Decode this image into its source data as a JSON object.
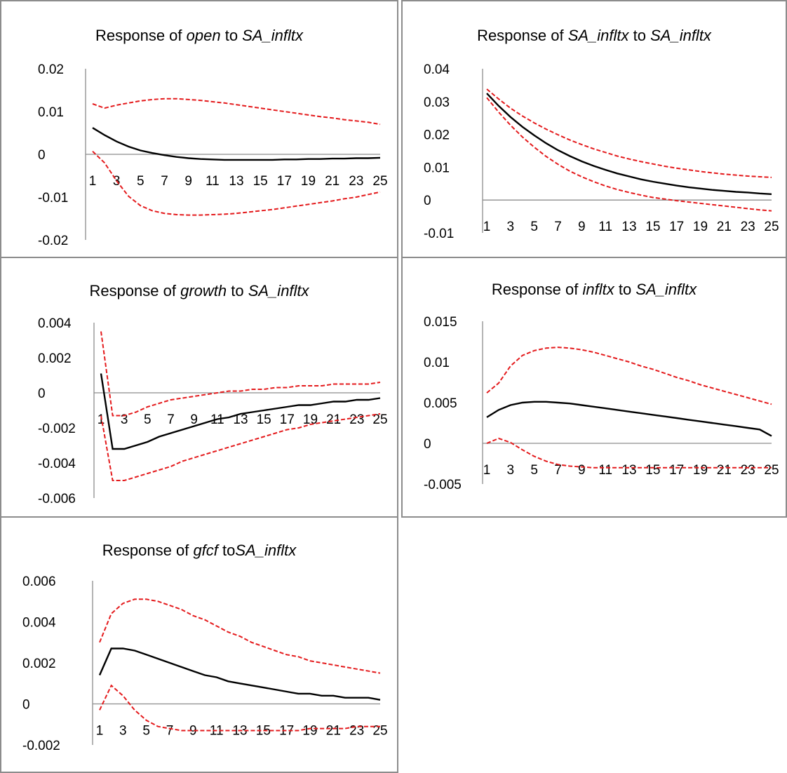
{
  "chart_data": [
    {
      "type": "line",
      "title_parts": [
        "Response of ",
        "open",
        " to ",
        "SA_infltx"
      ],
      "x": [
        1,
        2,
        3,
        4,
        5,
        6,
        7,
        8,
        9,
        10,
        11,
        12,
        13,
        14,
        15,
        16,
        17,
        18,
        19,
        20,
        21,
        22,
        23,
        24,
        25
      ],
      "x_tick_labels": [
        "1",
        "3",
        "5",
        "7",
        "9",
        "11",
        "13",
        "15",
        "17",
        "19",
        "21",
        "23",
        "25"
      ],
      "y_tick_labels": [
        "0.02",
        "0.01",
        "0",
        "-0.01",
        "-0.02"
      ],
      "ylim": [
        -0.02,
        0.02
      ],
      "series": [
        {
          "role": "response",
          "color": "#000000",
          "dash": "solid",
          "values": [
            0.0062,
            0.0045,
            0.003,
            0.0018,
            0.0009,
            0.0003,
            -0.0002,
            -0.0006,
            -0.0009,
            -0.0011,
            -0.0012,
            -0.0013,
            -0.0013,
            -0.0013,
            -0.0013,
            -0.0013,
            -0.0012,
            -0.0012,
            -0.0011,
            -0.0011,
            -0.001,
            -0.001,
            -0.0009,
            -0.0009,
            -0.0008
          ]
        },
        {
          "role": "upper",
          "color": "#e41a1c",
          "dash": "dashed",
          "values": [
            0.0118,
            0.0108,
            0.0115,
            0.012,
            0.0125,
            0.0128,
            0.013,
            0.013,
            0.0128,
            0.0126,
            0.0123,
            0.012,
            0.0116,
            0.0112,
            0.0108,
            0.0104,
            0.01,
            0.0096,
            0.0092,
            0.0088,
            0.0085,
            0.0081,
            0.0078,
            0.0075,
            0.007
          ]
        },
        {
          "role": "lower",
          "color": "#e41a1c",
          "dash": "dashed",
          "values": [
            0.0007,
            -0.002,
            -0.0062,
            -0.0098,
            -0.012,
            -0.0132,
            -0.0138,
            -0.0141,
            -0.0142,
            -0.0142,
            -0.0141,
            -0.014,
            -0.0138,
            -0.0135,
            -0.0132,
            -0.0129,
            -0.0125,
            -0.0121,
            -0.0117,
            -0.0113,
            -0.0109,
            -0.0104,
            -0.01,
            -0.0094,
            -0.0088
          ]
        }
      ]
    },
    {
      "type": "line",
      "title_parts": [
        "Response of ",
        "SA_infltx",
        " to ",
        "SA_infltx"
      ],
      "x": [
        1,
        2,
        3,
        4,
        5,
        6,
        7,
        8,
        9,
        10,
        11,
        12,
        13,
        14,
        15,
        16,
        17,
        18,
        19,
        20,
        21,
        22,
        23,
        24,
        25
      ],
      "x_tick_labels": [
        "1",
        "3",
        "5",
        "7",
        "9",
        "11",
        "13",
        "15",
        "17",
        "19",
        "21",
        "23",
        "25"
      ],
      "y_tick_labels": [
        "0.04",
        "0.03",
        "0.02",
        "0.01",
        "0",
        "-0.01"
      ],
      "ylim": [
        -0.01,
        0.04
      ],
      "series": [
        {
          "role": "response",
          "color": "#000000",
          "dash": "solid",
          "values": [
            0.0325,
            0.0287,
            0.0253,
            0.0223,
            0.0197,
            0.0173,
            0.0152,
            0.0134,
            0.0118,
            0.0104,
            0.0092,
            0.0081,
            0.0072,
            0.0063,
            0.0056,
            0.005,
            0.0044,
            0.0039,
            0.0035,
            0.0031,
            0.0028,
            0.0025,
            0.0023,
            0.002,
            0.0018
          ]
        },
        {
          "role": "upper",
          "color": "#e41a1c",
          "dash": "dashed",
          "values": [
            0.0338,
            0.0308,
            0.028,
            0.0256,
            0.0235,
            0.0216,
            0.0199,
            0.0183,
            0.0169,
            0.0156,
            0.0145,
            0.0134,
            0.0125,
            0.0117,
            0.011,
            0.0103,
            0.0097,
            0.0092,
            0.0087,
            0.0083,
            0.0079,
            0.0076,
            0.0073,
            0.0071,
            0.0069
          ]
        },
        {
          "role": "lower",
          "color": "#e41a1c",
          "dash": "dashed",
          "values": [
            0.0312,
            0.0268,
            0.0228,
            0.0192,
            0.0161,
            0.0133,
            0.0109,
            0.0088,
            0.0071,
            0.0056,
            0.0043,
            0.0032,
            0.0023,
            0.0015,
            0.0008,
            0.0003,
            -0.0002,
            -0.0006,
            -0.001,
            -0.0014,
            -0.0018,
            -0.0022,
            -0.0026,
            -0.003,
            -0.0033
          ]
        }
      ]
    },
    {
      "type": "line",
      "title_parts": [
        "Response of ",
        "growth",
        " to ",
        "SA_infltx"
      ],
      "x": [
        1,
        2,
        3,
        4,
        5,
        6,
        7,
        8,
        9,
        10,
        11,
        12,
        13,
        14,
        15,
        16,
        17,
        18,
        19,
        20,
        21,
        22,
        23,
        24,
        25
      ],
      "x_tick_labels": [
        "1",
        "3",
        "5",
        "7",
        "9",
        "11",
        "13",
        "15",
        "17",
        "19",
        "21",
        "23",
        "25"
      ],
      "y_tick_labels": [
        "0.004",
        "0.002",
        "0",
        "-0.002",
        "-0.004",
        "-0.006"
      ],
      "ylim": [
        -0.006,
        0.004
      ],
      "series": [
        {
          "role": "response",
          "color": "#000000",
          "dash": "solid",
          "values": [
            0.0011,
            -0.0032,
            -0.0032,
            -0.003,
            -0.0028,
            -0.0025,
            -0.0023,
            -0.0021,
            -0.0019,
            -0.0017,
            -0.0015,
            -0.0014,
            -0.0012,
            -0.0011,
            -0.001,
            -0.0009,
            -0.0008,
            -0.0007,
            -0.0007,
            -0.0006,
            -0.0005,
            -0.0005,
            -0.0004,
            -0.0004,
            -0.0003
          ]
        },
        {
          "role": "upper",
          "color": "#e41a1c",
          "dash": "dashed",
          "values": [
            0.0035,
            -0.0013,
            -0.0013,
            -0.0011,
            -0.0008,
            -0.0006,
            -0.0004,
            -0.0003,
            -0.0002,
            -0.0001,
            0.0,
            0.0001,
            0.0001,
            0.0002,
            0.0002,
            0.0003,
            0.0003,
            0.0004,
            0.0004,
            0.0004,
            0.0005,
            0.0005,
            0.0005,
            0.0005,
            0.0006
          ]
        },
        {
          "role": "lower",
          "color": "#e41a1c",
          "dash": "dashed",
          "values": [
            -0.0013,
            -0.005,
            -0.005,
            -0.0048,
            -0.0046,
            -0.0044,
            -0.0042,
            -0.0039,
            -0.0037,
            -0.0035,
            -0.0033,
            -0.0031,
            -0.0029,
            -0.0027,
            -0.0025,
            -0.0023,
            -0.0021,
            -0.002,
            -0.0018,
            -0.0017,
            -0.0016,
            -0.0015,
            -0.0014,
            -0.0013,
            -0.0012
          ]
        }
      ]
    },
    {
      "type": "line",
      "title_parts": [
        "Response of ",
        "infltx",
        " to ",
        "SA_infltx"
      ],
      "x": [
        1,
        2,
        3,
        4,
        5,
        6,
        7,
        8,
        9,
        10,
        11,
        12,
        13,
        14,
        15,
        16,
        17,
        18,
        19,
        20,
        21,
        22,
        23,
        24,
        25
      ],
      "x_tick_labels": [
        "1",
        "3",
        "5",
        "7",
        "9",
        "11",
        "13",
        "15",
        "17",
        "19",
        "21",
        "23",
        "25"
      ],
      "y_tick_labels": [
        "0.015",
        "0.01",
        "0.005",
        "0",
        "-0.005"
      ],
      "ylim": [
        -0.005,
        0.015
      ],
      "series": [
        {
          "role": "response",
          "color": "#000000",
          "dash": "solid",
          "values": [
            0.0032,
            0.0041,
            0.0047,
            0.005,
            0.0051,
            0.0051,
            0.005,
            0.0049,
            0.0047,
            0.0045,
            0.0043,
            0.0041,
            0.0039,
            0.0037,
            0.0035,
            0.0033,
            0.0031,
            0.0029,
            0.0027,
            0.0025,
            0.0023,
            0.0021,
            0.0019,
            0.0017,
            0.0009
          ]
        },
        {
          "role": "upper",
          "color": "#e41a1c",
          "dash": "dashed",
          "values": [
            0.0062,
            0.0074,
            0.0095,
            0.0108,
            0.0114,
            0.0117,
            0.0118,
            0.0117,
            0.0115,
            0.0112,
            0.0108,
            0.0104,
            0.01,
            0.0095,
            0.0091,
            0.0086,
            0.0081,
            0.0077,
            0.0072,
            0.0068,
            0.0064,
            0.006,
            0.0056,
            0.0052,
            0.0048
          ]
        },
        {
          "role": "lower",
          "color": "#e41a1c",
          "dash": "dashed",
          "values": [
            0.0,
            0.0006,
            0.0001,
            -0.0008,
            -0.0016,
            -0.0022,
            -0.0026,
            -0.0028,
            -0.0029,
            -0.003,
            -0.003,
            -0.003,
            -0.003,
            -0.003,
            -0.003,
            -0.003,
            -0.003,
            -0.003,
            -0.003,
            -0.003,
            -0.003,
            -0.003,
            -0.003,
            -0.003,
            -0.003
          ]
        }
      ]
    },
    {
      "type": "line",
      "title_parts": [
        "Response of ",
        "gfcf",
        " to",
        "SA_infltx"
      ],
      "x": [
        1,
        2,
        3,
        4,
        5,
        6,
        7,
        8,
        9,
        10,
        11,
        12,
        13,
        14,
        15,
        16,
        17,
        18,
        19,
        20,
        21,
        22,
        23,
        24,
        25
      ],
      "x_tick_labels": [
        "1",
        "3",
        "5",
        "7",
        "9",
        "11",
        "13",
        "15",
        "17",
        "19",
        "21",
        "23",
        "25"
      ],
      "y_tick_labels": [
        "0.006",
        "0.004",
        "0.002",
        "0",
        "-0.002"
      ],
      "ylim": [
        -0.002,
        0.006
      ],
      "series": [
        {
          "role": "response",
          "color": "#000000",
          "dash": "solid",
          "values": [
            0.0014,
            0.0027,
            0.0027,
            0.0026,
            0.0024,
            0.0022,
            0.002,
            0.0018,
            0.0016,
            0.0014,
            0.0013,
            0.0011,
            0.001,
            0.0009,
            0.0008,
            0.0007,
            0.0006,
            0.0005,
            0.0005,
            0.0004,
            0.0004,
            0.0003,
            0.0003,
            0.0003,
            0.0002
          ]
        },
        {
          "role": "upper",
          "color": "#e41a1c",
          "dash": "dashed",
          "values": [
            0.003,
            0.0044,
            0.0049,
            0.0051,
            0.0051,
            0.005,
            0.0048,
            0.0046,
            0.0043,
            0.0041,
            0.0038,
            0.0035,
            0.0033,
            0.003,
            0.0028,
            0.0026,
            0.0024,
            0.0023,
            0.0021,
            0.002,
            0.0019,
            0.0018,
            0.0017,
            0.0016,
            0.0015
          ]
        },
        {
          "role": "lower",
          "color": "#e41a1c",
          "dash": "dashed",
          "values": [
            -0.0003,
            0.0009,
            0.0004,
            -0.0003,
            -0.0008,
            -0.0011,
            -0.0012,
            -0.0013,
            -0.0013,
            -0.0013,
            -0.0013,
            -0.0013,
            -0.0013,
            -0.0013,
            -0.0013,
            -0.0013,
            -0.0013,
            -0.0013,
            -0.0012,
            -0.0012,
            -0.0012,
            -0.0012,
            -0.0011,
            -0.0011,
            -0.0011
          ]
        }
      ]
    }
  ]
}
